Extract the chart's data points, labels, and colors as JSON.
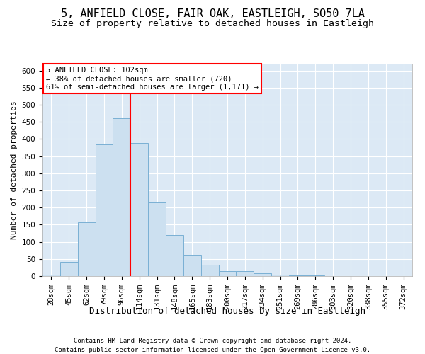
{
  "title1": "5, ANFIELD CLOSE, FAIR OAK, EASTLEIGH, SO50 7LA",
  "title2": "Size of property relative to detached houses in Eastleigh",
  "xlabel": "Distribution of detached houses by size in Eastleigh",
  "ylabel": "Number of detached properties",
  "bar_labels": [
    "28sqm",
    "45sqm",
    "62sqm",
    "79sqm",
    "96sqm",
    "114sqm",
    "131sqm",
    "148sqm",
    "165sqm",
    "183sqm",
    "200sqm",
    "217sqm",
    "234sqm",
    "251sqm",
    "269sqm",
    "286sqm",
    "303sqm",
    "320sqm",
    "338sqm",
    "355sqm",
    "372sqm"
  ],
  "bar_values": [
    4,
    42,
    158,
    385,
    460,
    388,
    215,
    120,
    63,
    33,
    14,
    14,
    8,
    5,
    3,
    2,
    1,
    1,
    0,
    0,
    0
  ],
  "bar_color": "#cce0f0",
  "bar_edge_color": "#7ab0d4",
  "property_line_x": 4.5,
  "annotation_text": "5 ANFIELD CLOSE: 102sqm\n← 38% of detached houses are smaller (720)\n61% of semi-detached houses are larger (1,171) →",
  "annotation_box_color": "white",
  "annotation_box_edge": "red",
  "vline_color": "red",
  "ylim": [
    0,
    620
  ],
  "yticks": [
    0,
    50,
    100,
    150,
    200,
    250,
    300,
    350,
    400,
    450,
    500,
    550,
    600
  ],
  "bg_color": "#dce9f5",
  "footer1": "Contains HM Land Registry data © Crown copyright and database right 2024.",
  "footer2": "Contains public sector information licensed under the Open Government Licence v3.0.",
  "title1_fontsize": 11,
  "title2_fontsize": 9.5,
  "xlabel_fontsize": 9,
  "ylabel_fontsize": 8,
  "tick_fontsize": 7.5,
  "footer_fontsize": 6.5
}
